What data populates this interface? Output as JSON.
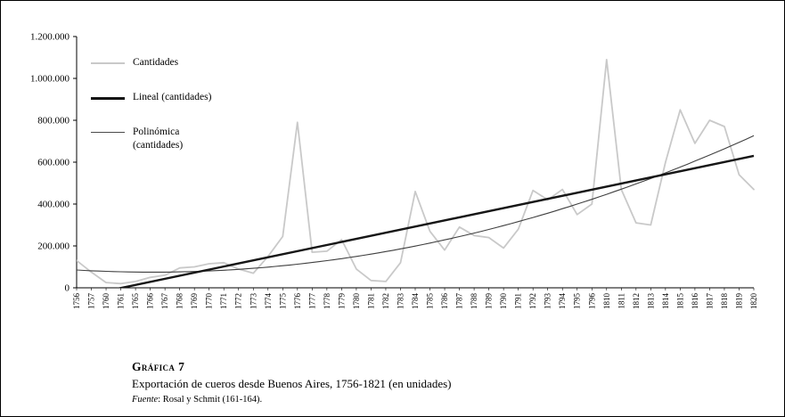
{
  "chart_data": {
    "type": "line",
    "title": "Exportación de cueros desde Buenos Aires, 1756-1821 (en unidades)",
    "grid": false,
    "legend_position": "top-left",
    "legend": [
      "Cantidades",
      "Lineal (cantidades)",
      "Polinómica (cantidades)"
    ],
    "ylim": [
      0,
      1200000
    ],
    "ytick_step": 200000,
    "ytick_labels": [
      "0",
      "200.000",
      "400.000",
      "600.000",
      "800.000",
      "1.000.000",
      "1.200.000"
    ],
    "categories": [
      1756,
      1757,
      1760,
      1761,
      1765,
      1766,
      1767,
      1768,
      1769,
      1770,
      1771,
      1772,
      1773,
      1774,
      1775,
      1776,
      1777,
      1778,
      1779,
      1780,
      1781,
      1782,
      1783,
      1784,
      1785,
      1786,
      1787,
      1788,
      1789,
      1790,
      1791,
      1792,
      1793,
      1794,
      1795,
      1796,
      1810,
      1811,
      1812,
      1813,
      1814,
      1815,
      1816,
      1817,
      1818,
      1819,
      1820
    ],
    "series": [
      {
        "name": "Cantidades",
        "color": "#c9c9c9",
        "width": 1.8,
        "values": [
          130000,
          75000,
          25000,
          20000,
          30000,
          50000,
          60000,
          95000,
          100000,
          115000,
          120000,
          90000,
          70000,
          150000,
          245000,
          790000,
          170000,
          175000,
          230000,
          90000,
          35000,
          30000,
          120000,
          460000,
          270000,
          180000,
          290000,
          250000,
          240000,
          190000,
          280000,
          465000,
          420000,
          470000,
          350000,
          400000,
          1090000,
          470000,
          310000,
          300000,
          600000,
          850000,
          690000,
          800000,
          770000,
          540000,
          470000
        ]
      }
    ],
    "trendlines": {
      "linear": {
        "name": "Lineal (cantidades)",
        "color": "#161616",
        "width": 2.4,
        "start": -45000,
        "end": 630000
      },
      "polynomial": {
        "name": "Polinómica (cantidades)",
        "color": "#3f3f3f",
        "width": 1.1,
        "coefficients": [
          85000,
          -4000,
          390
        ]
      }
    },
    "caption": {
      "label": "Gráfica 7",
      "title": "Exportación de cueros desde Buenos Aires, 1756-1821 (en unidades)",
      "source_prefix": "Fuente",
      "source_rest": ": Rosal y Schmit (161-164)."
    }
  }
}
